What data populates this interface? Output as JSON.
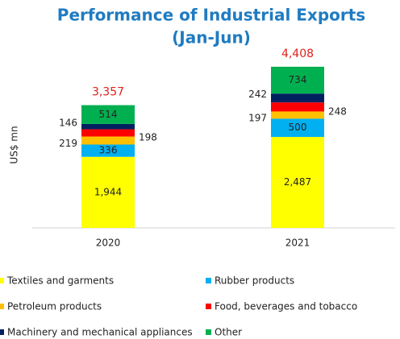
{
  "chart_data": {
    "type": "stacked_bar",
    "title": "Performance of Industrial Exports",
    "subtitle": "(Jan-Jun)",
    "y_label": "US$ mn",
    "categories": [
      "2020",
      "2021"
    ],
    "ylim": [
      0,
      5000
    ],
    "series": [
      {
        "name": "Textiles and garments",
        "color": "#ffff00",
        "values": [
          1944,
          2487
        ],
        "value_labels": [
          "1,944",
          "2,487"
        ]
      },
      {
        "name": "Rubber products",
        "color": "#00b0f0",
        "values": [
          336,
          500
        ]
      },
      {
        "name": "Petroleum products",
        "color": "#ffc000",
        "values": [
          219,
          197
        ]
      },
      {
        "name": "Food, beverages and tobacco",
        "color": "#ff0000",
        "values": [
          198,
          248
        ]
      },
      {
        "name": "Machinery and mechanical appliances",
        "color": "#002060",
        "values": [
          146,
          242
        ]
      },
      {
        "name": "Other",
        "color": "#00b050",
        "values": [
          514,
          734
        ]
      }
    ],
    "totals": [
      3357,
      4408
    ],
    "total_labels": [
      "3,357",
      "4,408"
    ]
  }
}
